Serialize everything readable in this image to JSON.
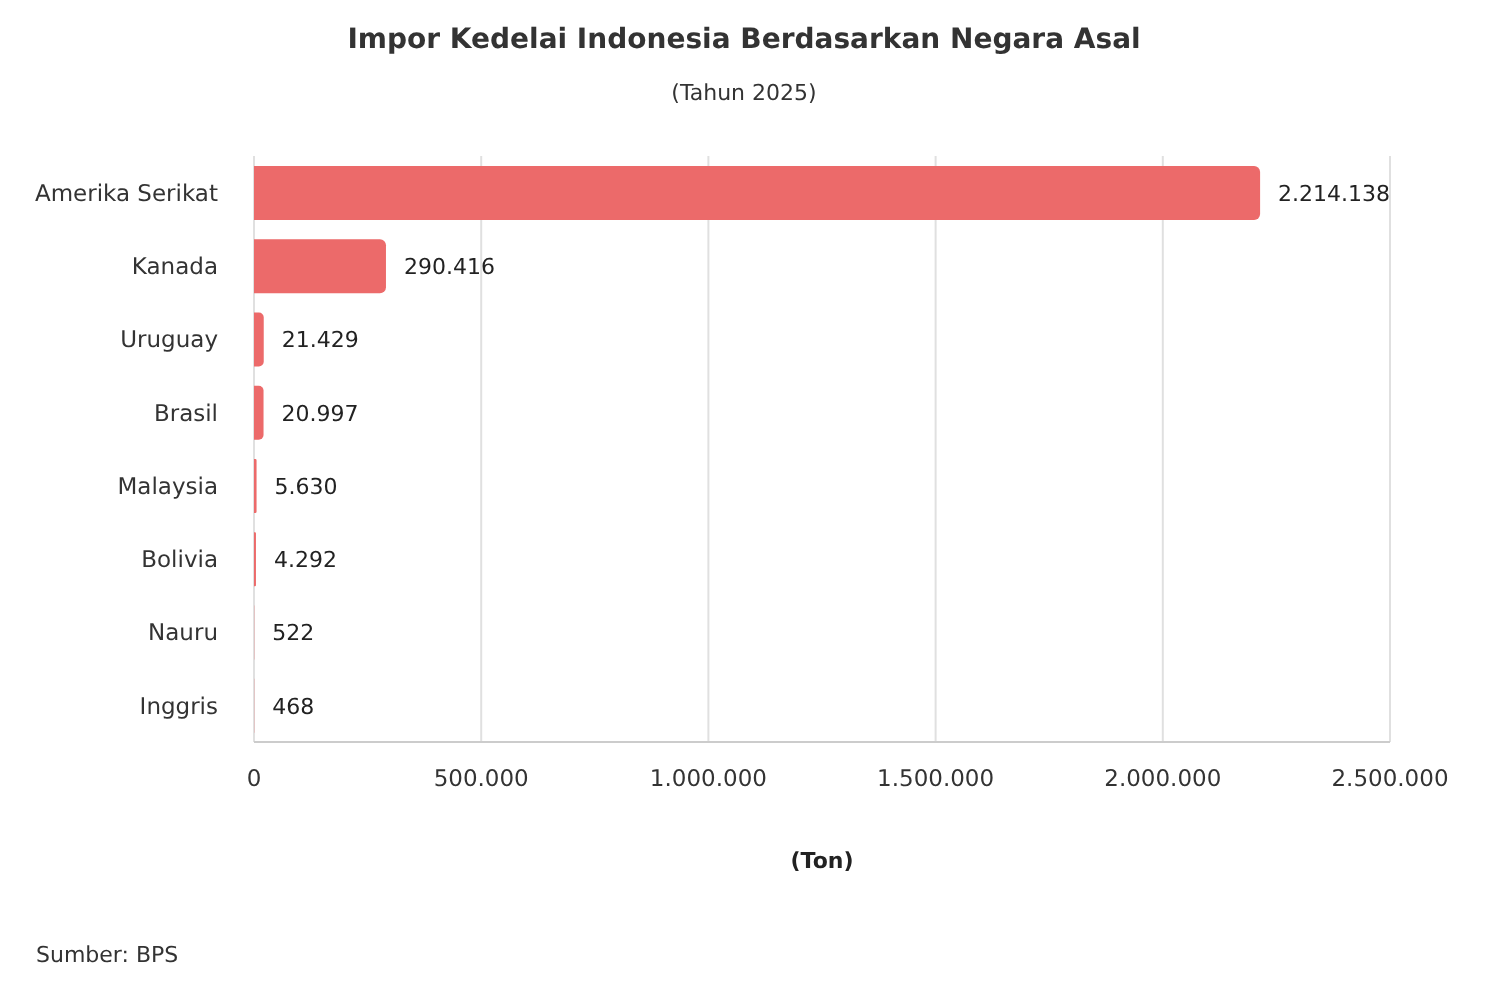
{
  "chart_data": {
    "type": "bar",
    "orientation": "horizontal",
    "title": "Impor Kedelai Indonesia Berdasarkan Negara Asal",
    "subtitle": "(Tahun 2025)",
    "xlabel": "(Ton)",
    "categories": [
      "Amerika Serikat",
      "Kanada",
      "Uruguay",
      "Brasil",
      "Malaysia",
      "Bolivia",
      "Nauru",
      "Inggris"
    ],
    "values": [
      2214138,
      290416,
      21429,
      20997,
      5630,
      4292,
      522,
      468
    ],
    "value_labels": [
      "2.214.138",
      "290.416",
      "21.429",
      "20.997",
      "5.630",
      "4.292",
      "522",
      "468"
    ],
    "color": "#ec6a6a",
    "xlim": [
      0,
      2500000
    ],
    "xticks": [
      0,
      {
        "value": 500000,
        "label": "500.000"
      },
      {
        "value": 1000000,
        "label": "1.000.000"
      },
      {
        "value": 1500000,
        "label": "1.500.000"
      },
      {
        "value": 2000000,
        "label": "2.000.000"
      },
      {
        "value": 2500000,
        "label": "2.500.000"
      }
    ],
    "grid": "x",
    "legend": false,
    "annotations": [
      "Sumber: BPS"
    ]
  }
}
